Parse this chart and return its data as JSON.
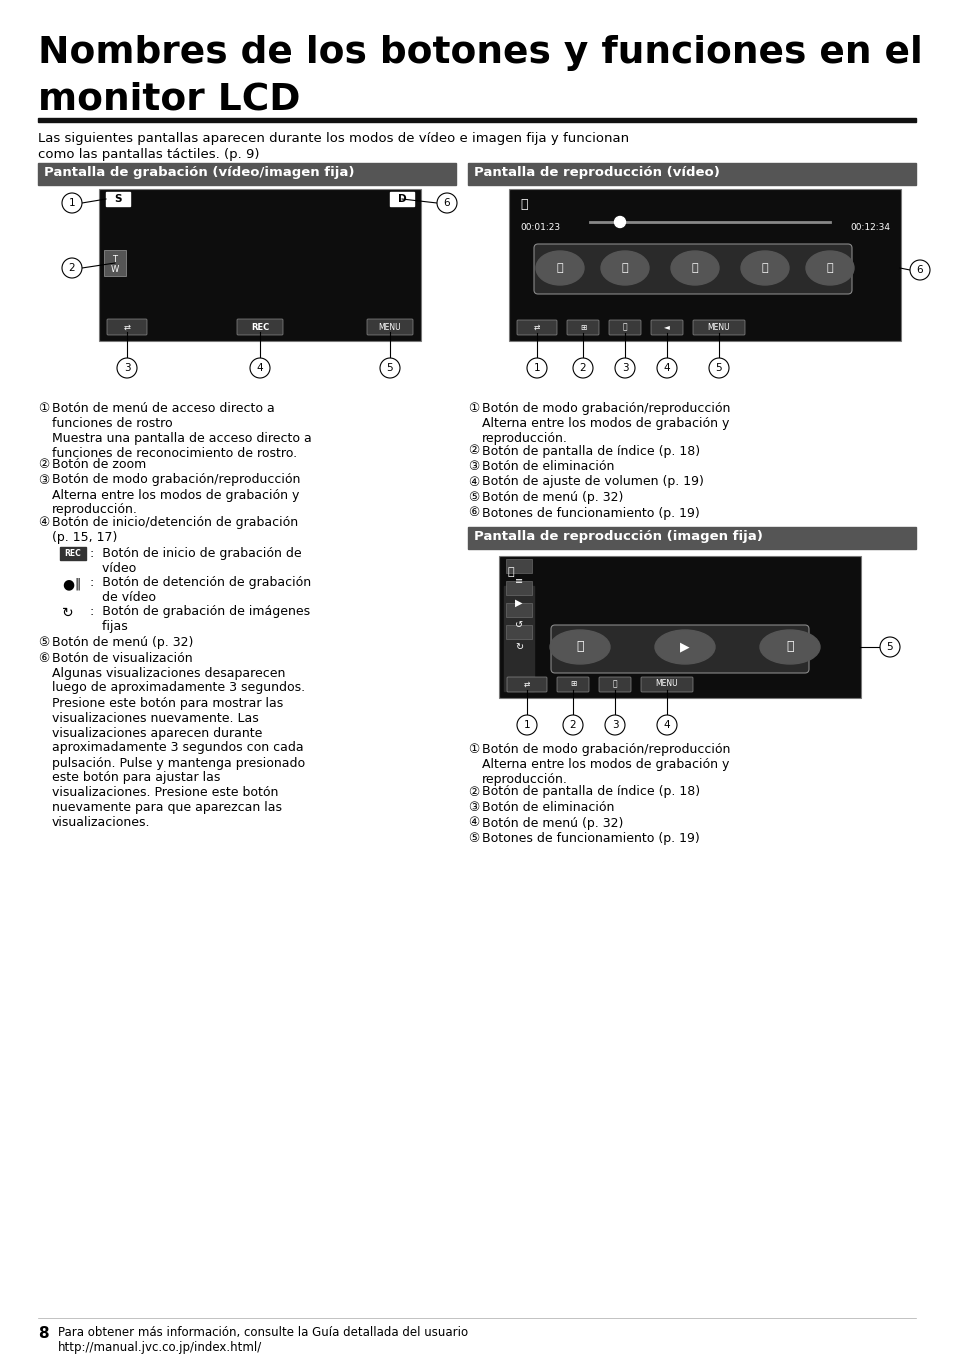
{
  "title_line1": "Nombres de los botones y funciones en el",
  "title_line2": "monitor LCD",
  "subtitle_line1": "Las siguientes pantallas aparecen durante los modos de vídeo e imagen fija y funcionan",
  "subtitle_line2": "como las pantallas táctiles. (p. 9)",
  "sec1_header": "Pantalla de grabación (vídeo/imagen fija)",
  "sec2_header": "Pantalla de reproducción (vídeo)",
  "sec3_header": "Pantalla de reproducción (imagen fija)",
  "header_bg": "#555555",
  "header_fg": "#ffffff",
  "screen_bg": "#111111",
  "page_bg": "#ffffff",
  "text_color": "#000000",
  "left_items": [
    [
      "①",
      "Botón de menú de acceso directo a\nfunciones de rostro\nMuestra una pantalla de acceso directo a\nfunciones de reconocimiento de rostro."
    ],
    [
      "②",
      "Botón de zoom"
    ],
    [
      "③",
      "Botón de modo grabación/reproducción\nAlterna entre los modos de grabación y\nreproducción."
    ],
    [
      "④",
      "Botón de inicio/detención de grabación\n(p. 15, 17)"
    ],
    [
      "⑤",
      "Botón de menú (p. 32)"
    ],
    [
      "⑥",
      "Botón de visualización\nAlgunas visualizaciones desaparecen\nluego de aproximadamente 3 segundos.\nPresione este botón para mostrar las\nvisualizaciones nuevamente. Las\nvisualizaciones aparecen durante\naproximadamente 3 segundos con cada\npulsación. Pulse y mantenga presionado\neste botón para ajustar las\nvisualizaciones. Presione este botón\nnuevamente para que aparezcan las\nvisualizaciones."
    ]
  ],
  "right1_items": [
    [
      "①",
      "Botón de modo grabación/reproducción\nAlterna entre los modos de grabación y\nreproducción."
    ],
    [
      "②",
      "Botón de pantalla de índice (p. 18)"
    ],
    [
      "③",
      "Botón de eliminación"
    ],
    [
      "④",
      "Botón de ajuste de volumen (p. 19)"
    ],
    [
      "⑤",
      "Botón de menú (p. 32)"
    ],
    [
      "⑥",
      "Botones de funcionamiento (p. 19)"
    ]
  ],
  "right2_items": [
    [
      "①",
      "Botón de modo grabación/reproducción\nAlterna entre los modos de grabación y\nreproducción."
    ],
    [
      "②",
      "Botón de pantalla de índice (p. 18)"
    ],
    [
      "③",
      "Botón de eliminación"
    ],
    [
      "④",
      "Botón de menú (p. 32)"
    ],
    [
      "⑤",
      "Botones de funcionamiento (p. 19)"
    ]
  ],
  "footer_num": "8",
  "footer_text": "Para obtener más información, consulte la Guía detallada del usuario\nhttp://manual.jvc.co.jp/index.html/"
}
